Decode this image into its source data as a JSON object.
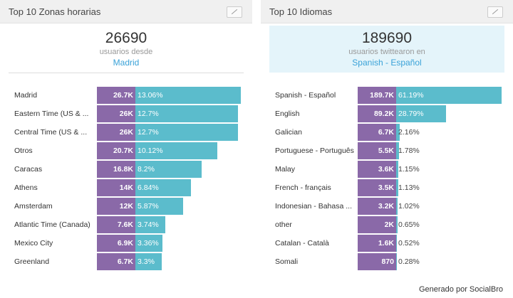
{
  "chart_data": [
    {
      "type": "bar",
      "title": "Top 10 Zonas horarias",
      "total": 26690,
      "subtitle": "usuarios desde",
      "highlight": "Madrid",
      "categories": [
        "Madrid",
        "Eastern Time (US & ...",
        "Central Time (US & ...",
        "Otros",
        "Caracas",
        "Athens",
        "Amsterdam",
        "Atlantic Time (Canada)",
        "Mexico City",
        "Greenland"
      ],
      "series": [
        {
          "color": "#8a69a8",
          "values": [
            26700,
            26000,
            26000,
            20700,
            16800,
            14000,
            12000,
            7600,
            6900,
            6700
          ],
          "value_labels": [
            "26.7K",
            "26K",
            "26K",
            "20.7K",
            "16.8K",
            "14K",
            "12K",
            "7.6K",
            "6.9K",
            "6.7K"
          ]
        },
        {
          "color": "#5bbccc",
          "values": [
            13.06,
            12.7,
            12.7,
            10.12,
            8.2,
            6.84,
            5.87,
            3.74,
            3.36,
            3.3
          ],
          "value_labels": [
            "13.06%",
            "12.7%",
            "12.7%",
            "10.12%",
            "8.2%",
            "6.84%",
            "5.87%",
            "3.74%",
            "3.36%",
            "3.3%"
          ]
        }
      ]
    },
    {
      "type": "bar",
      "title": "Top 10 Idiomas",
      "total": 189690,
      "subtitle": "usuarios twittearon en",
      "highlight": "Spanish - Español",
      "categories": [
        "Spanish - Español",
        "English",
        "Galician",
        "Portuguese - Português",
        "Malay",
        "French - français",
        "Indonesian - Bahasa ...",
        "other",
        "Catalan - Català",
        "Somali"
      ],
      "series": [
        {
          "color": "#8a69a8",
          "values": [
            189700,
            89200,
            6700,
            5500,
            3600,
            3500,
            3200,
            2000,
            1600,
            870
          ],
          "value_labels": [
            "189.7K",
            "89.2K",
            "6.7K",
            "5.5K",
            "3.6K",
            "3.5K",
            "3.2K",
            "2K",
            "1.6K",
            "870"
          ]
        },
        {
          "color": "#5bbccc",
          "values": [
            61.19,
            28.79,
            2.16,
            1.78,
            1.15,
            1.13,
            1.02,
            0.65,
            0.52,
            0.28
          ],
          "value_labels": [
            "61.19%",
            "28.79%",
            "2.16%",
            "1.78%",
            "1.15%",
            "1.13%",
            "1.02%",
            "0.65%",
            "0.52%",
            "0.28%"
          ]
        }
      ]
    }
  ],
  "footer": "Generado por SocialBro"
}
